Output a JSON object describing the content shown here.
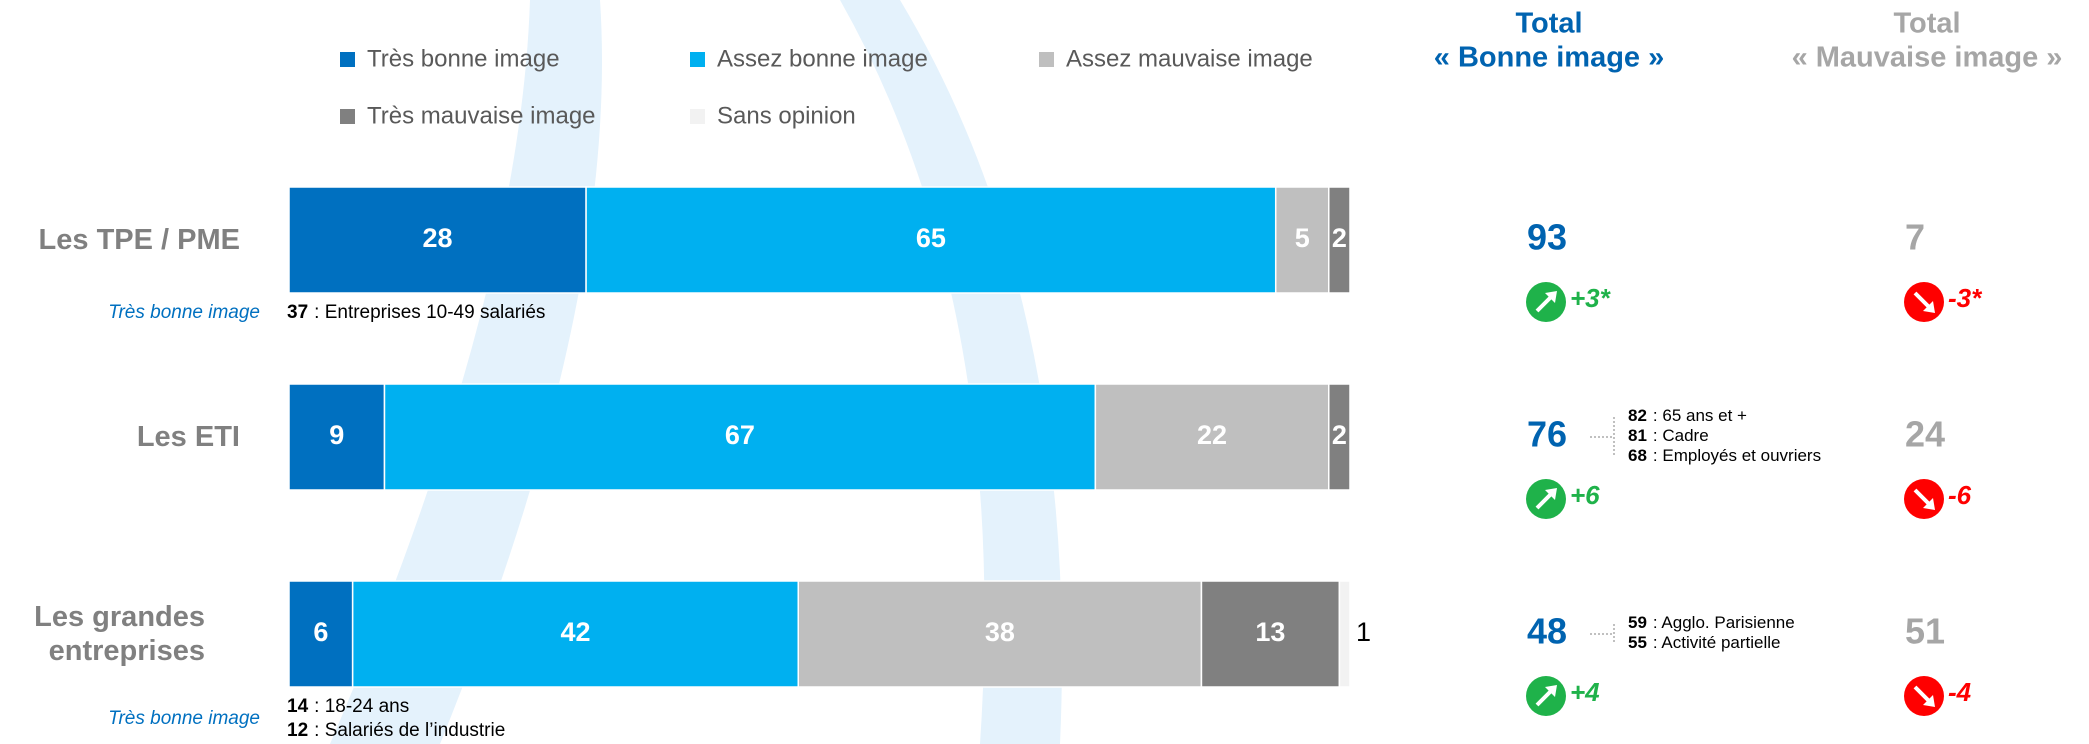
{
  "chart_data": {
    "type": "stacked-bar",
    "categories": [
      "Les TPE / PME",
      "Les ETI",
      "Les grandes entreprises"
    ],
    "xlim": [
      0,
      100
    ],
    "legend": "top",
    "series": [
      {
        "name": "Très bonne image",
        "color": "#0070c0",
        "values": [
          28,
          9,
          6
        ]
      },
      {
        "name": "Assez bonne image",
        "color": "#00b0f0",
        "values": [
          65,
          67,
          42
        ]
      },
      {
        "name": "Assez mauvaise image",
        "color": "#bfbfbf",
        "values": [
          5,
          22,
          38
        ]
      },
      {
        "name": "Très mauvaise image",
        "color": "#808080",
        "values": [
          2,
          2,
          13
        ]
      },
      {
        "name": "Sans opinion",
        "color": "#f2f2f2",
        "values": [
          null,
          null,
          1
        ]
      }
    ],
    "totals": [
      {
        "title": "Total",
        "subtitle": "« Bonne image »",
        "color": "#0063b0",
        "values": [
          93,
          76,
          48
        ],
        "changes": [
          "+3*",
          "+6",
          "+4"
        ],
        "change_color": "#1fb24a"
      },
      {
        "title": "Total",
        "subtitle": "« Mauvaise image »",
        "color": "#a6a6a6",
        "values": [
          7,
          24,
          51
        ],
        "changes": [
          "-3*",
          "-6",
          "-4"
        ],
        "change_color": "#ff0000"
      }
    ],
    "bar_notes": [
      {
        "label": "Très bonne image",
        "items": [
          {
            "value": 37,
            "text": ": Entreprises 10-49 salariés"
          }
        ]
      },
      null,
      {
        "label": "Très bonne image",
        "items": [
          {
            "value": 14,
            "text": ": 18-24 ans"
          },
          {
            "value": 12,
            "text": ": Salariés de l’industrie"
          }
        ]
      }
    ],
    "total_notes": [
      null,
      [
        {
          "value": 82,
          "text": ": 65 ans et +"
        },
        {
          "value": 81,
          "text": ": Cadre"
        },
        {
          "value": 68,
          "text": ": Employés et ouvriers"
        }
      ],
      [
        {
          "value": 59,
          "text": ": Agglo. Parisienne"
        },
        {
          "value": 55,
          "text": ": Activité partielle"
        }
      ]
    ]
  }
}
